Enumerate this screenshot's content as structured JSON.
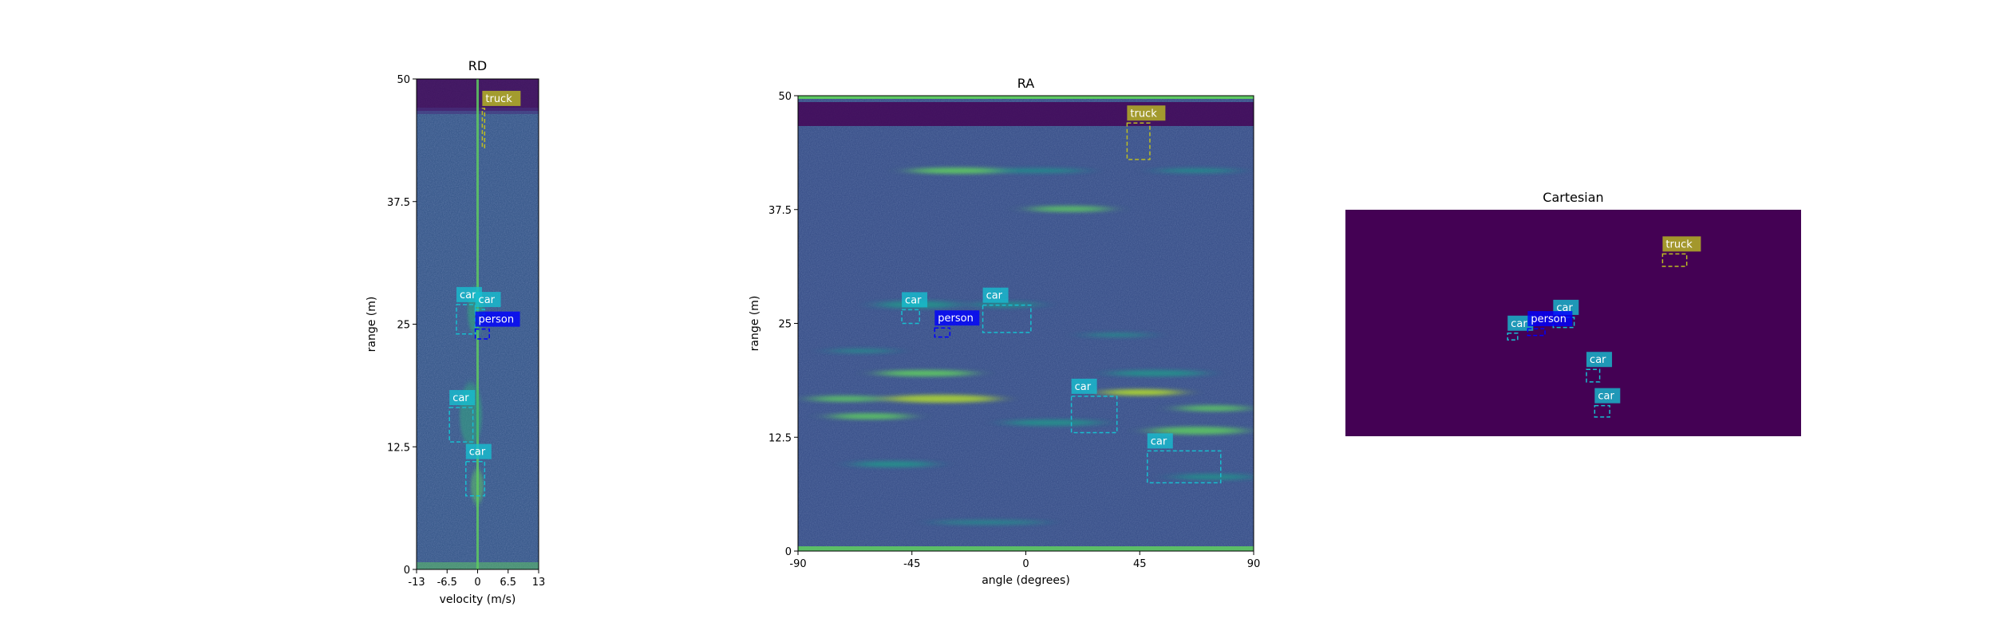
{
  "colors": {
    "background_low": "#440154",
    "background_mid": "#3b528b",
    "background_high": "#21918c",
    "car": "#17becf",
    "truck": "#bcbd22",
    "person": "#0000ff"
  },
  "chart_data": [
    {
      "type": "heatmap",
      "title": "RD",
      "xlabel": "velocity (m/s)",
      "ylabel": "range (m)",
      "xlim": [
        -13,
        13
      ],
      "ylim": [
        0,
        50
      ],
      "xticks": [
        "-13",
        "-6.5",
        "0",
        "6.5",
        "13"
      ],
      "yticks": [
        "0",
        "12.5",
        "25",
        "37.5",
        "50"
      ],
      "detections": [
        {
          "label": "truck",
          "x": [
            1,
            1.5
          ],
          "y": [
            43,
            47
          ]
        },
        {
          "label": "car",
          "x": [
            -4.5,
            -0.5
          ],
          "y": [
            24,
            27
          ]
        },
        {
          "label": "car",
          "x": [
            -0.5,
            1.5
          ],
          "y": [
            26,
            26.5
          ]
        },
        {
          "label": "person",
          "x": [
            -0.5,
            2.5
          ],
          "y": [
            23.5,
            24.5
          ]
        },
        {
          "label": "car",
          "x": [
            -6,
            -1
          ],
          "y": [
            13,
            16.5
          ]
        },
        {
          "label": "car",
          "x": [
            -2.5,
            1.5
          ],
          "y": [
            7.5,
            11
          ]
        }
      ]
    },
    {
      "type": "heatmap",
      "title": "RA",
      "xlabel": "angle (degrees)",
      "ylabel": "range (m)",
      "xlim": [
        -90,
        90
      ],
      "ylim": [
        0,
        50
      ],
      "xticks": [
        "-90",
        "-45",
        "0",
        "45",
        "90"
      ],
      "yticks": [
        "0",
        "12.5",
        "25",
        "37.5",
        "50"
      ],
      "detections": [
        {
          "label": "truck",
          "x": [
            40,
            49
          ],
          "y": [
            43,
            47
          ]
        },
        {
          "label": "car",
          "x": [
            -49,
            -42
          ],
          "y": [
            25,
            26.5
          ]
        },
        {
          "label": "car",
          "x": [
            -17,
            2
          ],
          "y": [
            24,
            27
          ]
        },
        {
          "label": "person",
          "x": [
            -36,
            -30
          ],
          "y": [
            23.5,
            24.5
          ]
        },
        {
          "label": "car",
          "x": [
            18,
            36
          ],
          "y": [
            13,
            17
          ]
        },
        {
          "label": "car",
          "x": [
            48,
            77
          ],
          "y": [
            7.5,
            11
          ]
        }
      ]
    },
    {
      "type": "heatmap",
      "title": "Cartesian",
      "detections": [
        {
          "label": "truck",
          "x": [
            0.696,
            0.749
          ],
          "y": [
            0.75,
            0.805
          ]
        },
        {
          "label": "car",
          "x": [
            0.456,
            0.502
          ],
          "y": [
            0.48,
            0.525
          ]
        },
        {
          "label": "car",
          "x": [
            0.356,
            0.378
          ],
          "y": [
            0.425,
            0.455
          ]
        },
        {
          "label": "person",
          "x": [
            0.4,
            0.438
          ],
          "y": [
            0.445,
            0.475
          ]
        },
        {
          "label": "car",
          "x": [
            0.529,
            0.558
          ],
          "y": [
            0.24,
            0.295
          ]
        },
        {
          "label": "car",
          "x": [
            0.547,
            0.58
          ],
          "y": [
            0.085,
            0.135
          ]
        }
      ]
    }
  ]
}
